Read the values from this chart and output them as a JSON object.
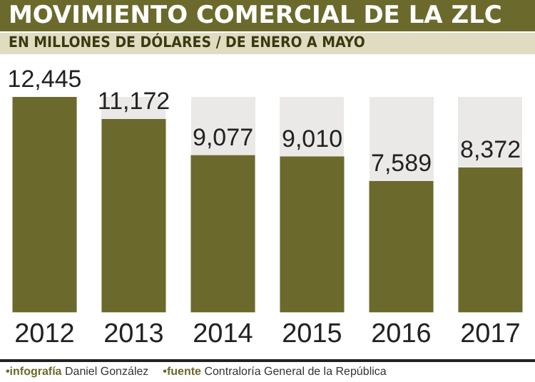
{
  "chart_data": {
    "type": "bar",
    "title": "MOVIMIENTO COMERCIAL DE LA ZLC",
    "subtitle": "EN MILLONES DE DÓLARES / DE ENERO A MAYO",
    "categories": [
      "2012",
      "2013",
      "2014",
      "2015",
      "2016",
      "2017"
    ],
    "values": [
      12445,
      11172,
      9077,
      9010,
      7589,
      8372
    ],
    "value_labels": [
      "12,445",
      "11,172",
      "9,077",
      "9,010",
      "7,589",
      "8,372"
    ],
    "color": "#6b6a2c",
    "ylim": [
      0,
      12445
    ],
    "tick_labels": "x",
    "grid": false,
    "legend": false,
    "annotations": [
      "•infografía Daniel González",
      "•fuente Contraloría General de la República"
    ]
  }
}
